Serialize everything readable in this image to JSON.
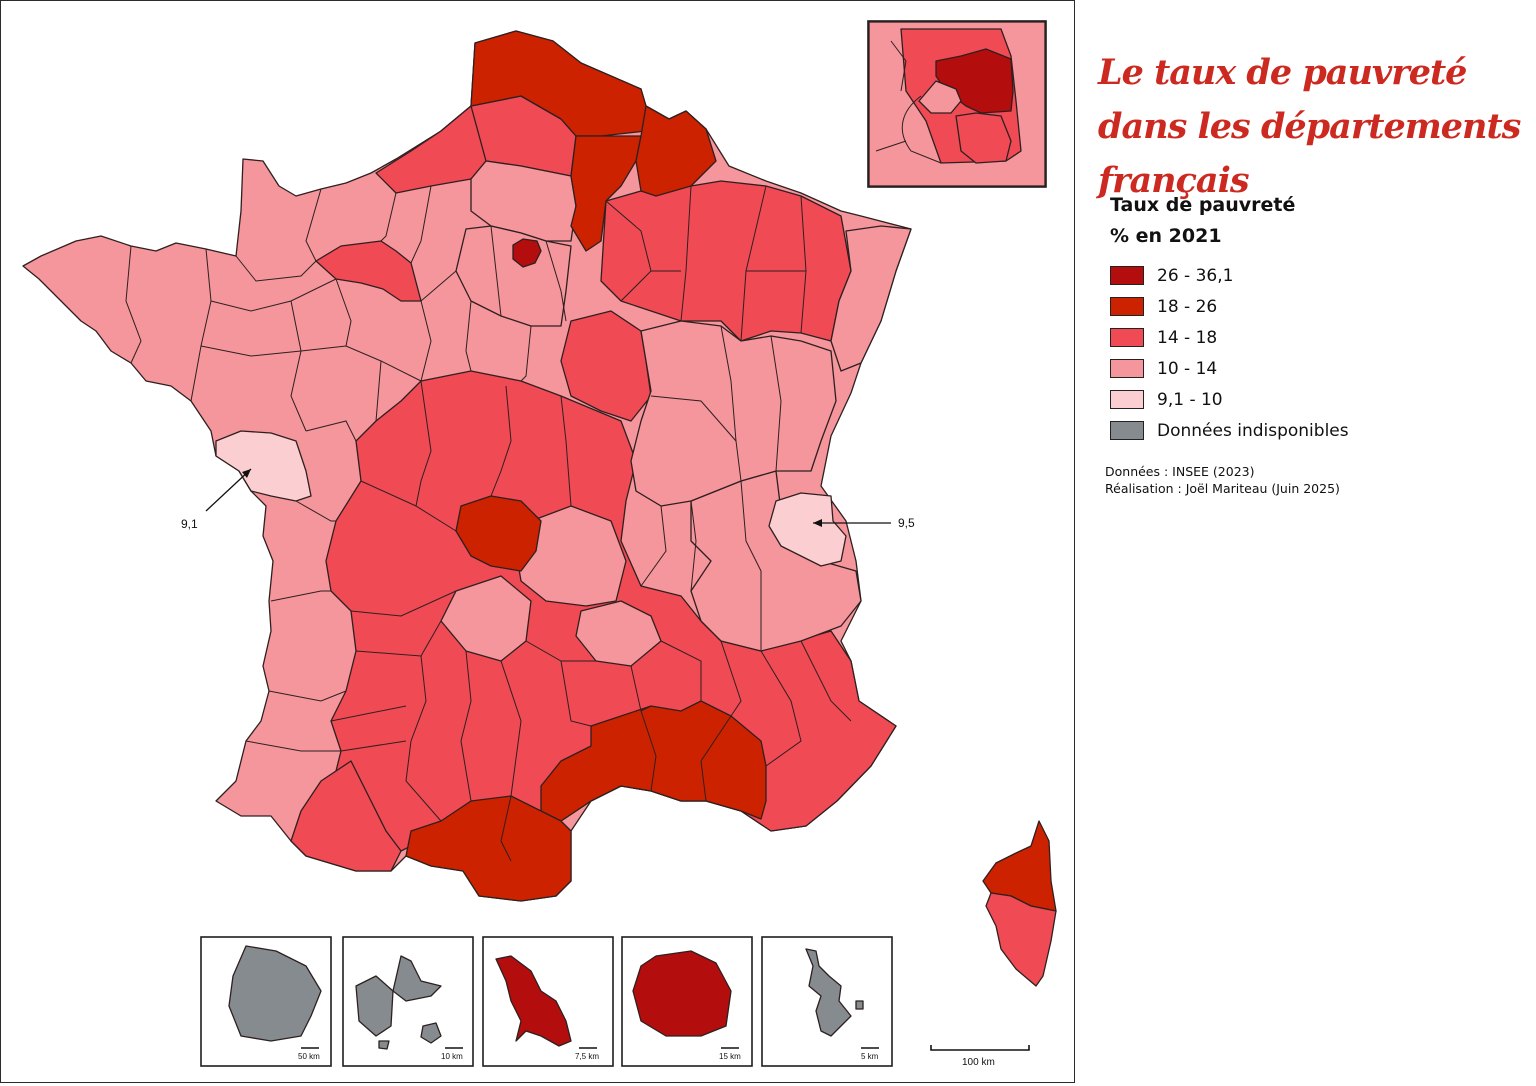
{
  "title": "Le taux de pauvreté dans les départements français",
  "legend": {
    "title_line1": "Taux de pauvreté",
    "title_line2": "% en 2021",
    "classes": [
      {
        "label": "26 - 36,1",
        "color": "#b30d0d"
      },
      {
        "label": "18 - 26",
        "color": "#cc2200"
      },
      {
        "label": "14 - 18",
        "color": "#f04a55"
      },
      {
        "label": "10 - 14",
        "color": "#f5959c"
      },
      {
        "label": "9,1 - 10",
        "color": "#fbcfd1"
      },
      {
        "label": "Données indisponibles",
        "color": "#858b8e"
      }
    ]
  },
  "credits": {
    "source": "Données : INSEE (2023)",
    "author": "Réalisation : Joël Mariteau (Juin 2025)"
  },
  "annotations": {
    "west_value": "9,1",
    "east_value": "9,5"
  },
  "scale": {
    "main_label": "100 km",
    "insets": [
      {
        "label": "50 km",
        "class_color": "#858b8e"
      },
      {
        "label": "10 km",
        "class_color": "#858b8e"
      },
      {
        "label": "7,5 km",
        "class_color": "#b30d0d"
      },
      {
        "label": "15 km",
        "class_color": "#b30d0d"
      },
      {
        "label": "5 km",
        "class_color": "#858b8e"
      }
    ]
  }
}
